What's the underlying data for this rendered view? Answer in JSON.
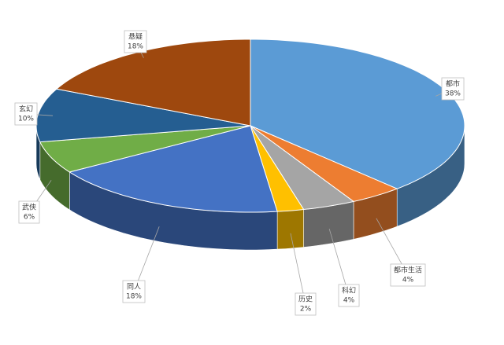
{
  "chart_data": {
    "type": "pie",
    "three_d": true,
    "categories": [
      "都市",
      "都市生活",
      "科幻",
      "历史",
      "同人",
      "武侠",
      "玄幻",
      "悬疑"
    ],
    "values": [
      38,
      4,
      4,
      2,
      18,
      6,
      10,
      18
    ],
    "value_labels": [
      "38%",
      "4%",
      "4%",
      "2%",
      "18%",
      "6%",
      "10%",
      "18%"
    ],
    "colors": [
      "#5b9bd5",
      "#ed7d31",
      "#a5a5a5",
      "#ffc000",
      "#4472c4",
      "#70ad47",
      "#255e91",
      "#9e480e"
    ]
  }
}
